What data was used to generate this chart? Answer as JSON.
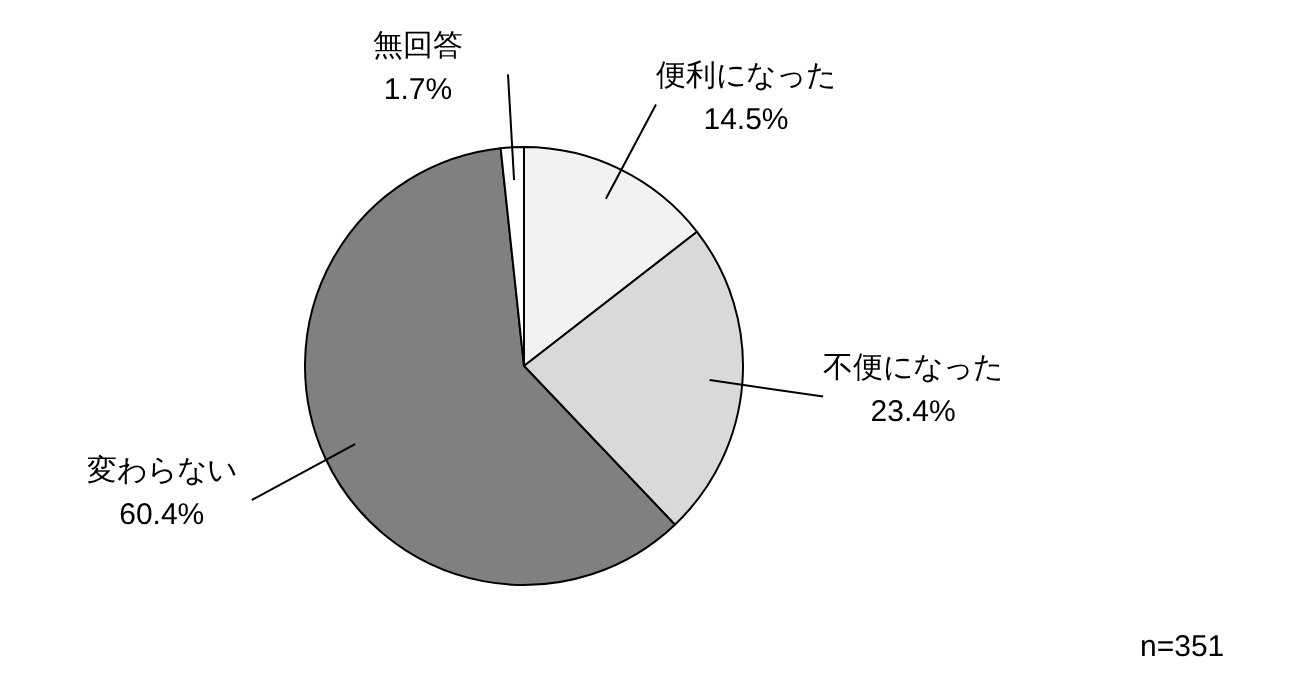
{
  "chart_data": {
    "type": "pie",
    "categories": [
      "便利になった",
      "不便になった",
      "変わらない",
      "無回答"
    ],
    "values": [
      14.5,
      23.4,
      60.4,
      1.7
    ],
    "colors": [
      "#f2f2f2",
      "#d9d9d9",
      "#808080",
      "#ffffff"
    ],
    "value_labels": [
      "14.5%",
      "23.4%",
      "60.4%",
      "1.7%"
    ],
    "annotations": [
      "n=351"
    ],
    "legend": false
  }
}
